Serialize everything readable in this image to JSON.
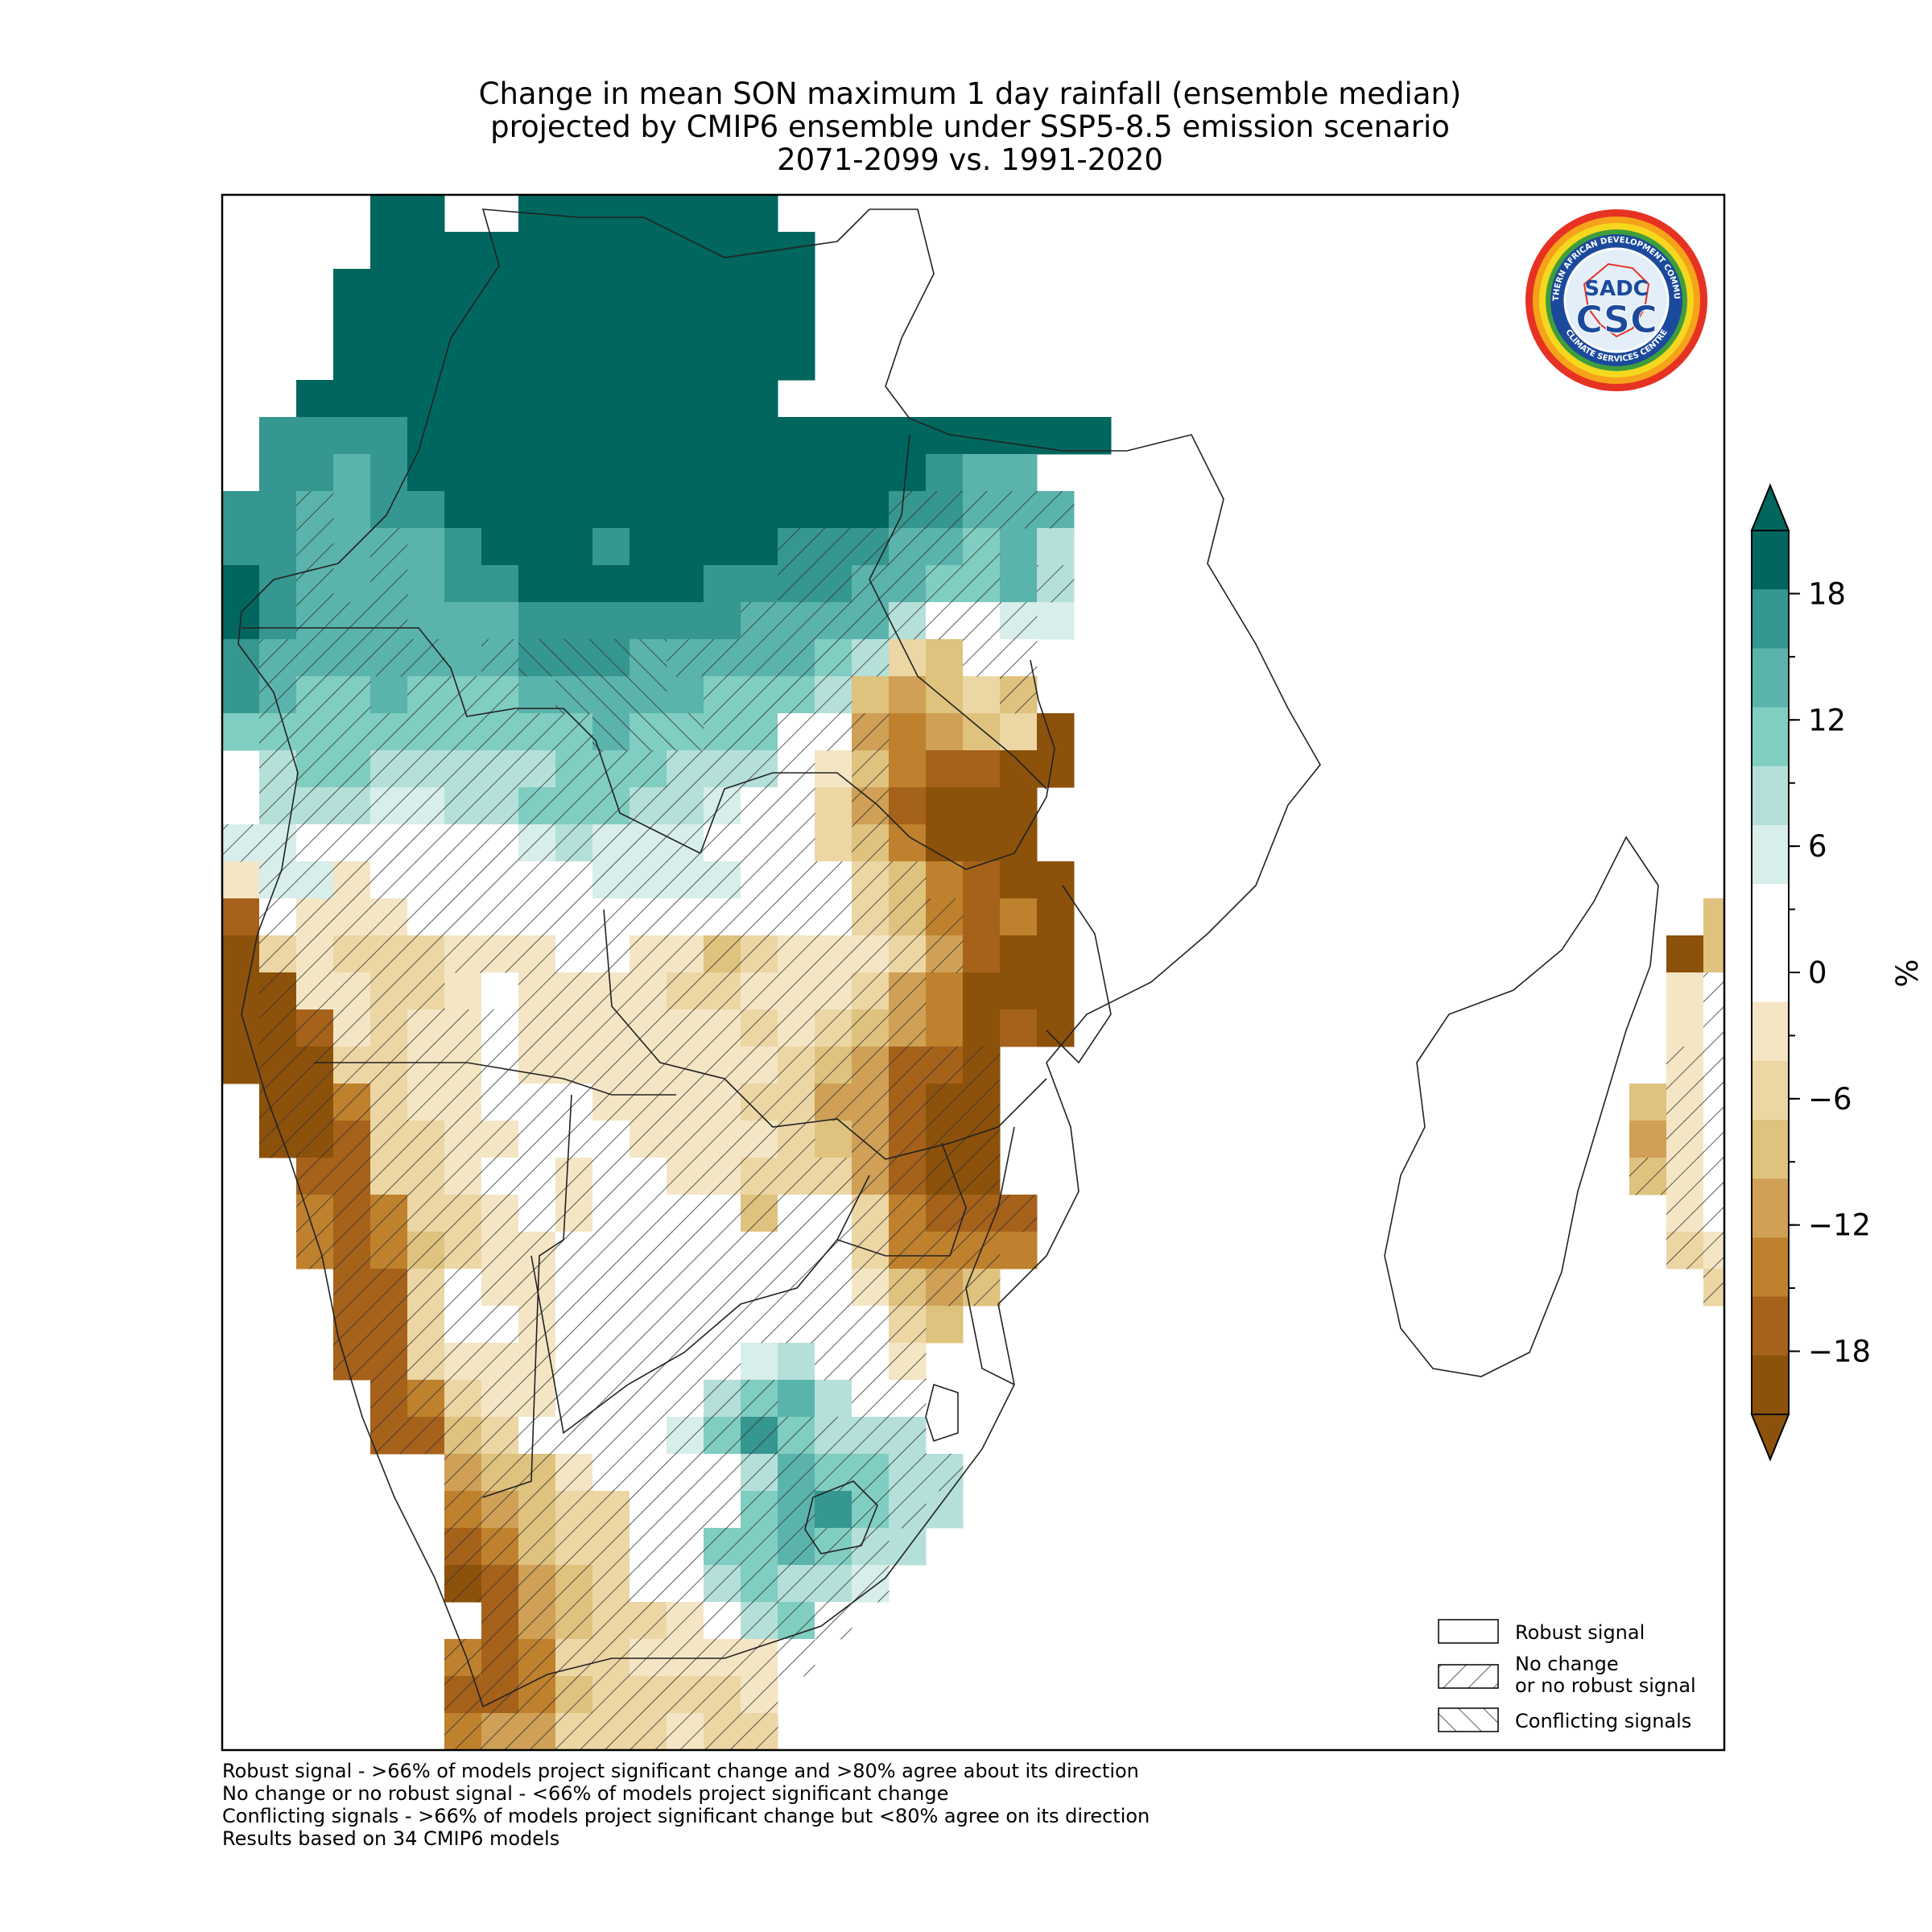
{
  "title": {
    "line1": "Change in mean SON maximum 1 day rainfall (ensemble median)",
    "line2": "projected by CMIP6 ensemble under SSP5-8.5 emission scenario",
    "line3": "2071-2099 vs. 1991-2020"
  },
  "colorbar": {
    "unit": "%",
    "ticks": [
      "18",
      "12",
      "6",
      "0",
      "−6",
      "−12",
      "−18"
    ],
    "tick_values": [
      18,
      12,
      6,
      0,
      -6,
      -12,
      -18
    ],
    "range": [
      -21,
      21
    ],
    "extend": "both",
    "colors": {
      "above_max": "#01665e",
      "bins_from_top": [
        "#01665e",
        "#35978f",
        "#5ab4ac",
        "#80cdc1",
        "#b5e0da",
        "#d7eeeb",
        "#ffffff",
        "#ffffff",
        "#f4e6c4",
        "#ecd6a4",
        "#dfc27d",
        "#cfa055",
        "#bf812d",
        "#a6611a",
        "#8c510a"
      ],
      "below_min": "#8c510a"
    }
  },
  "legend": {
    "robust": "Robust signal",
    "no_change_line1": "No change",
    "no_change_line2": "or no robust signal",
    "conflicting": "Conflicting signals"
  },
  "logo": {
    "text_top": "SOUTHERN AFRICAN DEVELOPMENT COMMUNITY",
    "text_bottom": "CLIMATE SERVICES CENTRE",
    "mark_top": "SADC",
    "mark_bottom": "CSC"
  },
  "footnotes": [
    "Robust signal - >66% of models project significant change and >80% agree about its direction",
    "No change or no robust signal - <66% of models project significant change",
    "Conflicting signals - >66% of models project significant change but <80% agree on its direction",
    "Results based on 34 CMIP6 models"
  ]
}
